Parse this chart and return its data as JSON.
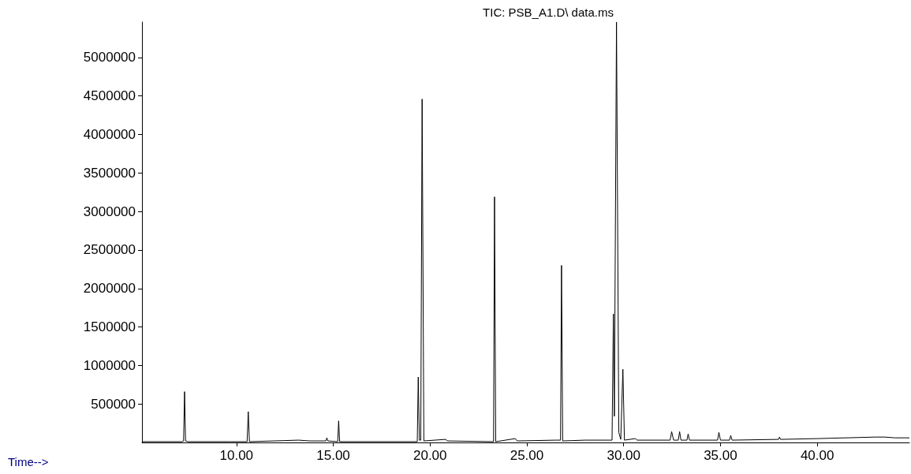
{
  "chart_data": {
    "type": "line",
    "title": "TIC: PSB_A1.D\\ data.ms",
    "xlabel": "Time-->",
    "xlim": [
      5.12,
      44.76
    ],
    "xticks": [
      {
        "value": 10,
        "label": "10.00"
      },
      {
        "value": 15,
        "label": "15.00"
      },
      {
        "value": 20,
        "label": "20.00"
      },
      {
        "value": 25,
        "label": "25.00"
      },
      {
        "value": 30,
        "label": "30.00"
      },
      {
        "value": 35,
        "label": "35.00"
      },
      {
        "value": 40,
        "label": "40.00"
      }
    ],
    "ylim": [
      0,
      5460000
    ],
    "yticks": [
      500000,
      1000000,
      1500000,
      2000000,
      2500000,
      3000000,
      3500000,
      4000000,
      4500000,
      5000000
    ],
    "grid": false,
    "marker": "none",
    "line_style": "solid",
    "series": [
      {
        "color": "#000000",
        "x": [
          5.12,
          7.2,
          7.27,
          7.32,
          7.37,
          7.5,
          9.7,
          10.55,
          10.61,
          10.67,
          13.2,
          13.8,
          14.62,
          14.67,
          14.72,
          15.23,
          15.28,
          15.33,
          19.34,
          19.39,
          19.45,
          19.52,
          19.59,
          19.68,
          20.8,
          20.9,
          23.28,
          23.33,
          23.39,
          24.4,
          24.5,
          26.5,
          26.74,
          26.79,
          26.85,
          28.0,
          29.4,
          29.47,
          29.52,
          29.63,
          29.75,
          29.85,
          29.96,
          30.04,
          30.6,
          30.7,
          32.4,
          32.48,
          32.58,
          32.82,
          32.89,
          32.96,
          33.27,
          33.33,
          33.4,
          34.85,
          34.92,
          35.0,
          35.47,
          35.53,
          35.6,
          38.0,
          38.05,
          38.1,
          40.0,
          43.0,
          43.5,
          44.0,
          44.76
        ],
        "values": [
          10000,
          10000,
          20000,
          660000,
          20000,
          10000,
          10000,
          10000,
          400000,
          10000,
          30000,
          20000,
          20000,
          60000,
          20000,
          10000,
          280000,
          10000,
          10000,
          850000,
          30000,
          30000,
          4460000,
          20000,
          40000,
          20000,
          10000,
          3190000,
          10000,
          50000,
          20000,
          30000,
          30000,
          2300000,
          20000,
          30000,
          30000,
          1670000,
          340000,
          5460000,
          130000,
          40000,
          950000,
          30000,
          50000,
          30000,
          30000,
          140000,
          30000,
          30000,
          140000,
          30000,
          30000,
          110000,
          30000,
          30000,
          130000,
          30000,
          30000,
          90000,
          30000,
          40000,
          70000,
          40000,
          50000,
          70000,
          70000,
          60000,
          60000
        ]
      }
    ]
  }
}
